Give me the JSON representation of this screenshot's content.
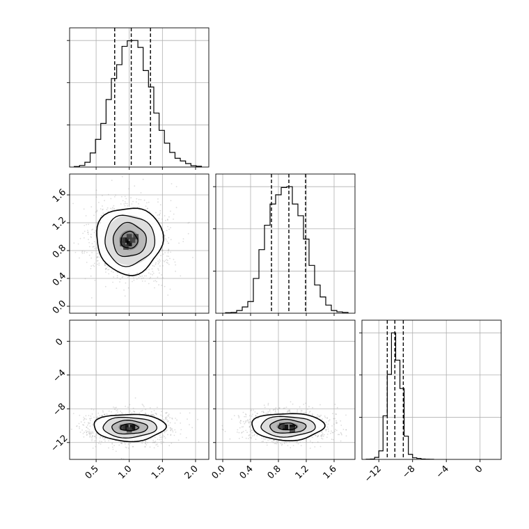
{
  "chart_data": {
    "type": "corner",
    "grid": true,
    "contour_levels": 4,
    "histograms": [
      {
        "param_index": 0,
        "xlim": [
          0.1,
          2.2
        ],
        "bin_edges": [
          0.17,
          0.25,
          0.33,
          0.41,
          0.49,
          0.57,
          0.65,
          0.73,
          0.81,
          0.89,
          0.97,
          1.05,
          1.13,
          1.21,
          1.29,
          1.37,
          1.45,
          1.53,
          1.61,
          1.69,
          1.77,
          1.85,
          1.93,
          2.01,
          2.09
        ],
        "counts": [
          0.2,
          0.6,
          1.8,
          5.3,
          10.4,
          16.4,
          25.4,
          33.3,
          38.5,
          45.4,
          47.5,
          47.6,
          45.0,
          36.3,
          30.1,
          20.3,
          13.8,
          9.0,
          5.5,
          3.3,
          2.3,
          1.3,
          0.5,
          0.3
        ],
        "quantiles": [
          0.78,
          1.03,
          1.32
        ]
      },
      {
        "param_index": 1,
        "xlim": [
          -0.1,
          1.9
        ],
        "bin_edges": [
          0.04,
          0.12,
          0.2,
          0.28,
          0.36,
          0.44,
          0.52,
          0.6,
          0.68,
          0.76,
          0.84,
          0.92,
          1.0,
          1.08,
          1.16,
          1.24,
          1.32,
          1.4,
          1.48,
          1.56,
          1.64,
          1.72,
          1.8
        ],
        "counts": [
          0.2,
          0.3,
          1.0,
          2.3,
          4.3,
          12.8,
          23.4,
          32.4,
          40.2,
          43.6,
          46.3,
          46.6,
          40.2,
          35.9,
          27.3,
          17.6,
          10.4,
          6.0,
          3.0,
          1.0,
          0.5,
          0.3
        ],
        "quantiles": [
          0.7,
          0.95,
          1.19
        ]
      },
      {
        "param_index": 2,
        "xlim": [
          -14,
          2.5
        ],
        "bin_edges": [
          -13.5,
          -13.0,
          -12.5,
          -12.0,
          -11.5,
          -11.0,
          -10.5,
          -10.0,
          -9.5,
          -9.0,
          -8.5,
          -8.0,
          -7.5,
          -7.0,
          -6.5,
          -6.0,
          -5.5
        ],
        "counts": [
          0.1,
          0.2,
          1.0,
          4.2,
          21.5,
          42.0,
          62.5,
          49.0,
          35.0,
          11.5,
          2.5,
          0.8,
          0.5,
          0.2,
          0.1,
          0.05
        ],
        "quantiles": [
          -11.0,
          -10.1,
          -9.1
        ]
      }
    ],
    "scatter_panels": [
      {
        "x_param": 0,
        "y_param": 1,
        "xlim": [
          0.1,
          2.2
        ],
        "ylim": [
          -0.1,
          1.9
        ],
        "center": [
          1.0,
          0.95
        ],
        "std": [
          0.25,
          0.24
        ],
        "contour_radii": [
          0.5,
          1.0,
          1.5,
          2.0
        ],
        "peak_cells": [
          [
            0.95,
            0.95
          ],
          [
            1.0,
            0.9
          ],
          [
            0.9,
            0.95
          ],
          [
            1.0,
            1.0
          ],
          [
            1.05,
            0.95
          ],
          [
            0.95,
            0.85
          ],
          [
            1.1,
            1.0
          ],
          [
            0.9,
            0.9
          ]
        ]
      },
      {
        "x_param": 0,
        "y_param": 2,
        "xlim": [
          0.1,
          2.2
        ],
        "ylim": [
          -14,
          2.5
        ],
        "center": [
          1.0,
          -10.2
        ],
        "std": [
          0.27,
          0.8
        ],
        "contour_radii": [
          0.5,
          1.0,
          1.5,
          2.0
        ],
        "peak_cells": [
          [
            0.95,
            -10.2
          ],
          [
            1.05,
            -10.2
          ],
          [
            0.9,
            -10.2
          ],
          [
            1.0,
            -10.5
          ]
        ]
      },
      {
        "x_param": 1,
        "y_param": 2,
        "xlim": [
          -0.1,
          1.9
        ],
        "ylim": [
          -14,
          2.5
        ],
        "center": [
          0.93,
          -10.1
        ],
        "std": [
          0.26,
          0.8
        ],
        "contour_radii": [
          0.5,
          1.0,
          1.5,
          2.0
        ],
        "peak_cells": [
          [
            0.9,
            -10.2
          ],
          [
            1.0,
            -10.2
          ],
          [
            0.85,
            -10.0
          ],
          [
            1.0,
            -10.5
          ]
        ]
      }
    ],
    "axes": {
      "col0_x_ticks": [
        {
          "value": 0.5,
          "label": "0.5"
        },
        {
          "value": 1.0,
          "label": "1.0"
        },
        {
          "value": 1.5,
          "label": "1.5"
        },
        {
          "value": 2.0,
          "label": "2.0"
        }
      ],
      "col1_x_ticks": [
        {
          "value": 0.0,
          "label": "0.0"
        },
        {
          "value": 0.4,
          "label": "0.4"
        },
        {
          "value": 0.8,
          "label": "0.8"
        },
        {
          "value": 1.2,
          "label": "1.2"
        },
        {
          "value": 1.6,
          "label": "1.6"
        }
      ],
      "col2_x_ticks": [
        {
          "value": -12,
          "label": "−12"
        },
        {
          "value": -8,
          "label": "−8"
        },
        {
          "value": -4,
          "label": "−4"
        },
        {
          "value": 0,
          "label": "0"
        }
      ],
      "row1_y_ticks": [
        {
          "value": 0.0,
          "label": "0.0"
        },
        {
          "value": 0.4,
          "label": "0.4"
        },
        {
          "value": 0.8,
          "label": "0.8"
        },
        {
          "value": 1.2,
          "label": "1.2"
        },
        {
          "value": 1.6,
          "label": "1.6"
        }
      ],
      "row2_y_ticks": [
        {
          "value": -12,
          "label": "−12"
        },
        {
          "value": -8,
          "label": "−8"
        },
        {
          "value": -4,
          "label": "−4"
        },
        {
          "value": 0,
          "label": "0"
        }
      ]
    },
    "colors": {
      "line": "#000000",
      "grid": "#b0b0b0",
      "scatter": "#9a9a9a",
      "density_max": "#000000"
    }
  }
}
